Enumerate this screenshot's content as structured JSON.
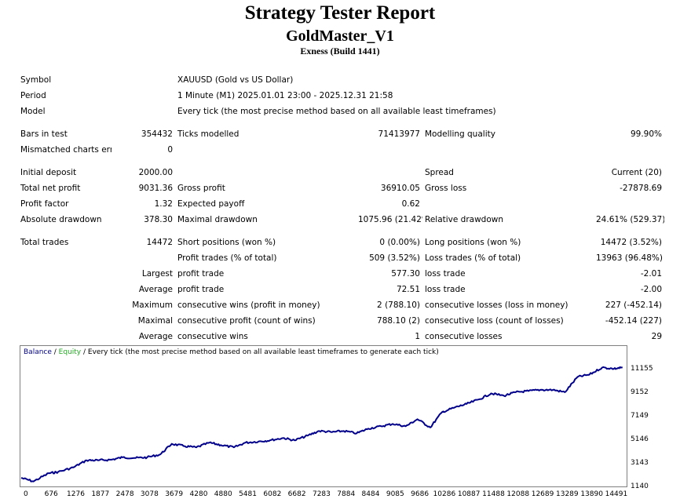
{
  "header": {
    "title": "Strategy Tester Report",
    "expert": "GoldMaster_V1",
    "broker": "Exness (Build 1441)"
  },
  "info": {
    "symbol_label": "Symbol",
    "symbol_value": "XAUUSD (Gold vs US Dollar)",
    "period_label": "Period",
    "period_value": "1 Minute (M1) 2025.01.01 23:00 - 2025.12.31 21:58",
    "model_label": "Model",
    "model_value": "Every tick (the most precise method based on all available least timeframes)"
  },
  "stats": {
    "bars_label": "Bars in test",
    "bars_value": "354432",
    "ticks_label": "Ticks modelled",
    "ticks_value": "71413977",
    "quality_label": "Modelling quality",
    "quality_value": "99.90%",
    "mismatch_label": "Mismatched charts errors",
    "mismatch_value": "0",
    "deposit_label": "Initial deposit",
    "deposit_value": "2000.00",
    "spread_label": "Spread",
    "spread_value": "Current (20)",
    "netprofit_label": "Total net profit",
    "netprofit_value": "9031.36",
    "grossprofit_label": "Gross profit",
    "grossprofit_value": "36910.05",
    "grossloss_label": "Gross loss",
    "grossloss_value": "-27878.69",
    "pf_label": "Profit factor",
    "pf_value": "1.32",
    "payoff_label": "Expected payoff",
    "payoff_value": "0.62",
    "absdd_label": "Absolute drawdown",
    "absdd_value": "378.30",
    "maxdd_label": "Maximal drawdown",
    "maxdd_value": "1075.96 (21.42%)",
    "reldd_label": "Relative drawdown",
    "reldd_value": "24.61% (529.37)",
    "trades_label": "Total trades",
    "trades_value": "14472",
    "short_label": "Short positions (won %)",
    "short_value": "0 (0.00%)",
    "long_label": "Long positions (won %)",
    "long_value": "14472 (3.52%)",
    "pt_label": "Profit trades (% of total)",
    "pt_value": "509 (3.52%)",
    "lt_label": "Loss trades (% of total)",
    "lt_value": "13963 (96.48%)",
    "largest_label": "Largest",
    "largest_pt_label": "profit trade",
    "largest_pt_value": "577.30",
    "largest_lt_label": "loss trade",
    "largest_lt_value": "-2.01",
    "average_label": "Average",
    "average_pt_label": "profit trade",
    "average_pt_value": "72.51",
    "average_lt_label": "loss trade",
    "average_lt_value": "-2.00",
    "maximum_label": "Maximum",
    "max_cw_label": "consecutive wins (profit in money)",
    "max_cw_value": "2 (788.10)",
    "max_cl_label": "consecutive losses (loss in money)",
    "max_cl_value": "227 (-452.14)",
    "maximal_label": "Maximal",
    "mxl_cp_label": "consecutive profit (count of wins)",
    "mxl_cp_value": "788.10 (2)",
    "mxl_cl_label": "consecutive loss (count of losses)",
    "mxl_cl_value": "-452.14 (227)",
    "avg2_label": "Average",
    "avg_cw_label": "consecutive wins",
    "avg_cw_value": "1",
    "avg_cl_label": "consecutive losses",
    "avg_cl_value": "29"
  },
  "chart_legend": {
    "balance": "Balance",
    "sep": " / ",
    "equity": "Equity",
    "rest": " / Every tick (the most precise method based on all available least timeframes to generate each tick)"
  },
  "chart_data": {
    "type": "line",
    "title": "",
    "series": [
      {
        "name": "Balance",
        "color": "#00008b",
        "x": [
          0,
          300,
          676,
          900,
          1276,
          1600,
          1877,
          2200,
          2478,
          2800,
          3078,
          3400,
          3679,
          4000,
          4280,
          4600,
          4880,
          5200,
          5481,
          5800,
          6082,
          6400,
          6682,
          7000,
          7283,
          7600,
          7884,
          8200,
          8484,
          8800,
          9085,
          9400,
          9686,
          10000,
          10286,
          10600,
          10887,
          11200,
          11488,
          11800,
          12088,
          12400,
          12689,
          13000,
          13289,
          13600,
          13890,
          14200,
          14491,
          14700
        ],
        "y": [
          1800,
          1500,
          2200,
          2300,
          2700,
          3300,
          3300,
          3350,
          3550,
          3500,
          3550,
          3800,
          4700,
          4500,
          4400,
          4800,
          4600,
          4400,
          4800,
          4900,
          5000,
          5200,
          5000,
          5400,
          5800,
          5700,
          5800,
          5600,
          6000,
          6200,
          6400,
          6200,
          6800,
          6100,
          7400,
          7800,
          8100,
          8500,
          9000,
          8800,
          9100,
          9200,
          9300,
          9300,
          9100,
          10400,
          10600,
          11200,
          11100,
          11200
        ]
      },
      {
        "name": "Equity",
        "color": "#22aa22",
        "x": [],
        "y": []
      }
    ],
    "x_ticks": [
      "0",
      "676",
      "1276",
      "1877",
      "2478",
      "3078",
      "3679",
      "4280",
      "4880",
      "5481",
      "6082",
      "6682",
      "7283",
      "7884",
      "8484",
      "9085",
      "9686",
      "10286",
      "10887",
      "11488",
      "12088",
      "12689",
      "13289",
      "13890",
      "14491"
    ],
    "y_ticks": [
      "11155",
      "9152",
      "7149",
      "5146",
      "3143",
      "1140"
    ],
    "xlim": [
      0,
      14780
    ],
    "ylim": [
      1140,
      11900
    ]
  }
}
